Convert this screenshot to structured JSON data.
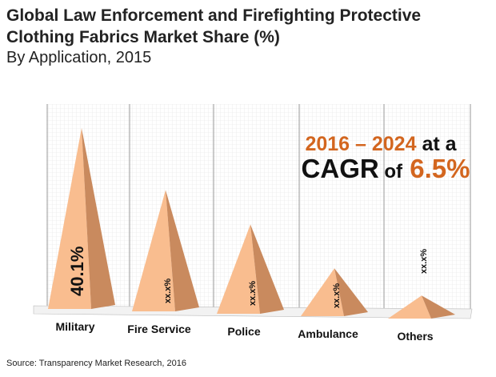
{
  "chart_data": {
    "type": "bar",
    "title": "Global Law Enforcement and Firefighting Protective Clothing Fabrics Market Share (%)",
    "subtitle": "By Application, 2015",
    "categories": [
      "Military",
      "Fire Service",
      "Police",
      "Ambulance",
      "Others"
    ],
    "values": [
      40.1,
      26.9,
      19.8,
      10.6,
      5.1
    ],
    "data_labels": [
      "40.1%",
      "xx.x%",
      "xx.x%",
      "xx.x%",
      "xx.x%"
    ],
    "mark_shape": "pyramid",
    "grid": true,
    "annotation": {
      "years": "2016 – 2024",
      "at_a": "at a",
      "cagr": "CAGR",
      "of": "of",
      "rate": "6.5%"
    },
    "source": "Source: Transparency Market Research, 2016",
    "colors": {
      "front": "#f9bd8f",
      "side": "#c98a5e",
      "accent": "#d3661f"
    }
  }
}
